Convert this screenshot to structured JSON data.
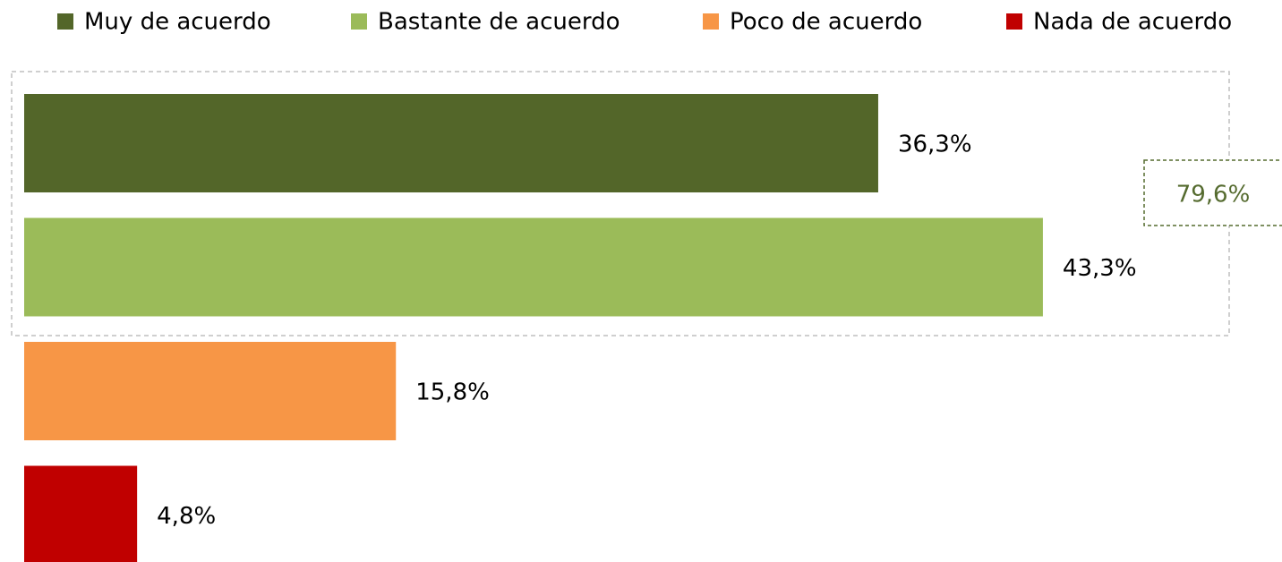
{
  "chart_data": {
    "type": "bar",
    "orientation": "horizontal",
    "categories": [
      null
    ],
    "series": [
      {
        "name": "Muy de acuerdo",
        "color": "#536629",
        "values": [
          36.3
        ],
        "value_labels": [
          "36,3%"
        ]
      },
      {
        "name": "Bastante de acuerdo",
        "color": "#9bbb59",
        "values": [
          43.3
        ],
        "value_labels": [
          "43,3%"
        ]
      },
      {
        "name": "Poco de acuerdo",
        "color": "#f79646",
        "values": [
          15.8
        ],
        "value_labels": [
          "15,8%"
        ]
      },
      {
        "name": "Nada de acuerdo",
        "color": "#c00000",
        "values": [
          4.8
        ],
        "value_labels": [
          "4,8%"
        ]
      }
    ],
    "annotations": [
      {
        "text": "79,6%",
        "color": "#556b2f"
      }
    ],
    "legend": "top"
  }
}
